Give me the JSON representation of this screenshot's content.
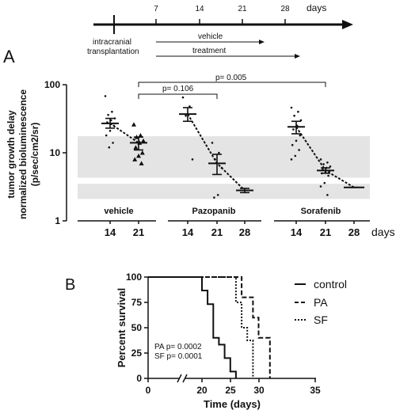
{
  "timeline": {
    "ticks": [
      "7",
      "14",
      "21",
      "28"
    ],
    "unit": "days",
    "event_line1": "intracranial",
    "event_line2": "transplantation",
    "arrow_labels": [
      "vehicle",
      "treatment"
    ]
  },
  "panel_labels": [
    "A",
    "B"
  ],
  "chart_data": [
    {
      "type": "scatter",
      "panel": "A",
      "ylabel_lines": [
        "tumor growth delay",
        "normalized bioluminescence",
        "(p/sec/cm2/sr)"
      ],
      "y_scale": "log",
      "ylim": [
        1,
        100
      ],
      "y_ticks": [
        "1",
        "10",
        "100"
      ],
      "xlabel": "days",
      "groups": [
        {
          "name": "vehicle",
          "days": [
            "14",
            "21"
          ],
          "means": [
            27,
            14
          ],
          "sem_low": [
            23,
            11
          ],
          "sem_high": [
            32,
            17
          ],
          "marker": "circle"
        },
        {
          "name": "Pazopanib",
          "days": [
            "14",
            "21",
            "28"
          ],
          "means": [
            37,
            7,
            2.8
          ],
          "sem_low": [
            29,
            4.8,
            2.6
          ],
          "sem_high": [
            46,
            9.5,
            3.0
          ],
          "marker": "diamond"
        },
        {
          "name": "Sorafenib",
          "days": [
            "14",
            "21",
            "28"
          ],
          "means": [
            24,
            5.5,
            3.1
          ],
          "sem_low": [
            19,
            5.0,
            3.1
          ],
          "sem_high": [
            29,
            6.0,
            3.1
          ],
          "marker": "circle"
        }
      ],
      "points": {
        "vehicle_14": [
          68,
          40,
          36,
          32,
          30,
          28,
          25,
          21,
          18,
          14,
          12
        ],
        "vehicle_21": [
          26,
          18,
          17,
          15,
          14,
          12,
          10,
          9,
          8,
          7
        ],
        "pazopanib_14": [
          65,
          48,
          35,
          8
        ],
        "pazopanib_21": [
          14,
          10,
          8,
          6,
          2.4,
          2.2
        ],
        "sorafenib_14": [
          46,
          40,
          35,
          30,
          25,
          22,
          18,
          15,
          13,
          11,
          9,
          8
        ],
        "sorafenib_21": [
          8,
          7.2,
          6.8,
          6.3,
          6,
          5.7,
          5.4,
          5.2,
          5,
          4.6,
          3.6,
          3.2,
          2.4
        ]
      },
      "comparisons": [
        {
          "label": "p= 0.106",
          "from": "vehicle_21",
          "to": "pazopanib_21"
        },
        {
          "label": "p= 0.005",
          "from": "vehicle_21",
          "to": "sorafenib_21"
        }
      ],
      "bands": [
        [
          4.3,
          17.5
        ],
        [
          2.1,
          3.5
        ]
      ]
    },
    {
      "type": "line",
      "panel": "B",
      "ylabel": "Percent survival",
      "xlabel": "Time (days)",
      "ylim": [
        0,
        100
      ],
      "xlim": [
        0,
        35
      ],
      "x_ticks": [
        "0",
        "20",
        "25",
        "30",
        "35"
      ],
      "y_ticks": [
        "0",
        "25",
        "50",
        "75",
        "100"
      ],
      "axis_break": "between 0 and 20",
      "series": [
        {
          "name": "control",
          "steps": [
            [
              0,
              100
            ],
            [
              20,
              100
            ],
            [
              20,
              86.7
            ],
            [
              21,
              86.7
            ],
            [
              21,
              73.3
            ],
            [
              22,
              73.3
            ],
            [
              22,
              40
            ],
            [
              23,
              40
            ],
            [
              23,
              33.3
            ],
            [
              24,
              33.3
            ],
            [
              24,
              20
            ],
            [
              25,
              20
            ],
            [
              25,
              6.7
            ],
            [
              26,
              6.7
            ],
            [
              26,
              0
            ]
          ]
        },
        {
          "name": "PA",
          "steps": [
            [
              0,
              100
            ],
            [
              27,
              100
            ],
            [
              27,
              80
            ],
            [
              29,
              80
            ],
            [
              29,
              60
            ],
            [
              30,
              60
            ],
            [
              30,
              40
            ],
            [
              32,
              40
            ],
            [
              32,
              0
            ]
          ]
        },
        {
          "name": "SF",
          "steps": [
            [
              0,
              100
            ],
            [
              26,
              100
            ],
            [
              26,
              75
            ],
            [
              27,
              75
            ],
            [
              27,
              50
            ],
            [
              28,
              50
            ],
            [
              28,
              37.5
            ],
            [
              29,
              37.5
            ],
            [
              29,
              0
            ]
          ]
        }
      ],
      "annotations": [
        "PA p= 0.0002",
        "SF p= 0.0001"
      ]
    }
  ]
}
